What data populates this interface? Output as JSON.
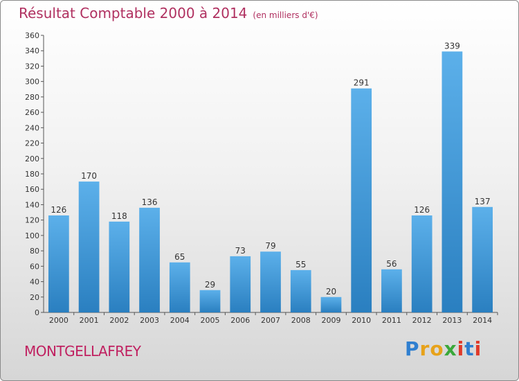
{
  "header": {
    "title": "Résultat Comptable 2000 à 2014",
    "subtitle": "(en milliers d'€)"
  },
  "footer": {
    "commune": "MONTGELLAFREY"
  },
  "logo": {
    "letters": [
      "P",
      "r",
      "o",
      "x",
      "i",
      "t",
      "i"
    ],
    "colors": [
      "#2f7fd0",
      "#e7a21a",
      "#e7a21a",
      "#3aa83a",
      "#e03a2a",
      "#2f7fd0",
      "#e03a2a"
    ]
  },
  "chart_data": {
    "type": "bar",
    "title": "Résultat Comptable 2000 à 2014",
    "subtitle": "(en milliers d'€)",
    "xlabel": "",
    "ylabel": "",
    "categories": [
      "2000",
      "2001",
      "2002",
      "2003",
      "2004",
      "2005",
      "2006",
      "2007",
      "2008",
      "2009",
      "2010",
      "2011",
      "2012",
      "2013",
      "2014"
    ],
    "values": [
      126,
      170,
      118,
      136,
      65,
      29,
      73,
      79,
      55,
      20,
      291,
      56,
      126,
      339,
      137
    ],
    "ylim": [
      0,
      360
    ],
    "ytick_step": 20,
    "grid": false,
    "bar_color": "#3a96d8"
  }
}
